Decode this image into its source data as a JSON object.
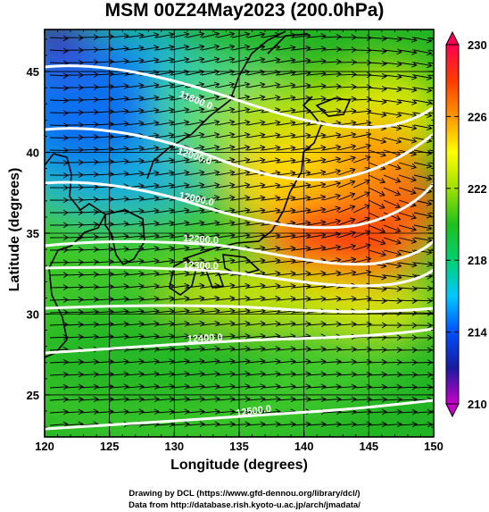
{
  "title": "MSM 00Z24May2023 (200.0hPa)",
  "x_axis": {
    "label": "Longitude (degrees)",
    "ticks": [
      "120",
      "125",
      "130",
      "135",
      "140",
      "145",
      "150"
    ],
    "range": [
      120,
      150
    ]
  },
  "y_axis": {
    "label": "Latitude (degrees)",
    "ticks": [
      "25",
      "30",
      "35",
      "40",
      "45"
    ],
    "range": [
      22.4,
      47.6
    ]
  },
  "colorbar": {
    "ticks": [
      "230",
      "226",
      "222",
      "218",
      "214",
      "210"
    ],
    "range": [
      210,
      230
    ],
    "colors": [
      "#c800c8",
      "#1a1aa0",
      "#0050ff",
      "#00c8ff",
      "#00d070",
      "#20c020",
      "#a0e000",
      "#ffff00",
      "#ff9600",
      "#ff3c00",
      "#ff0050"
    ]
  },
  "contours": [
    {
      "label": "11800.0",
      "value": 11800
    },
    {
      "label": "12000.0",
      "value": 12000
    },
    {
      "label": "12000.0",
      "value": 12000
    },
    {
      "label": "12200.0",
      "value": 12200
    },
    {
      "label": "12300.0",
      "value": 12300
    },
    {
      "label": "12400.0",
      "value": 12400
    },
    {
      "label": "12500.0",
      "value": 12500
    }
  ],
  "credits": {
    "line1": "Drawing by DCL (https://www.gfd-dennou.org/library/dcl/)",
    "line2": "Data from http://database.rish.kyoto-u.ac.jp/arch/jmadata/"
  }
}
